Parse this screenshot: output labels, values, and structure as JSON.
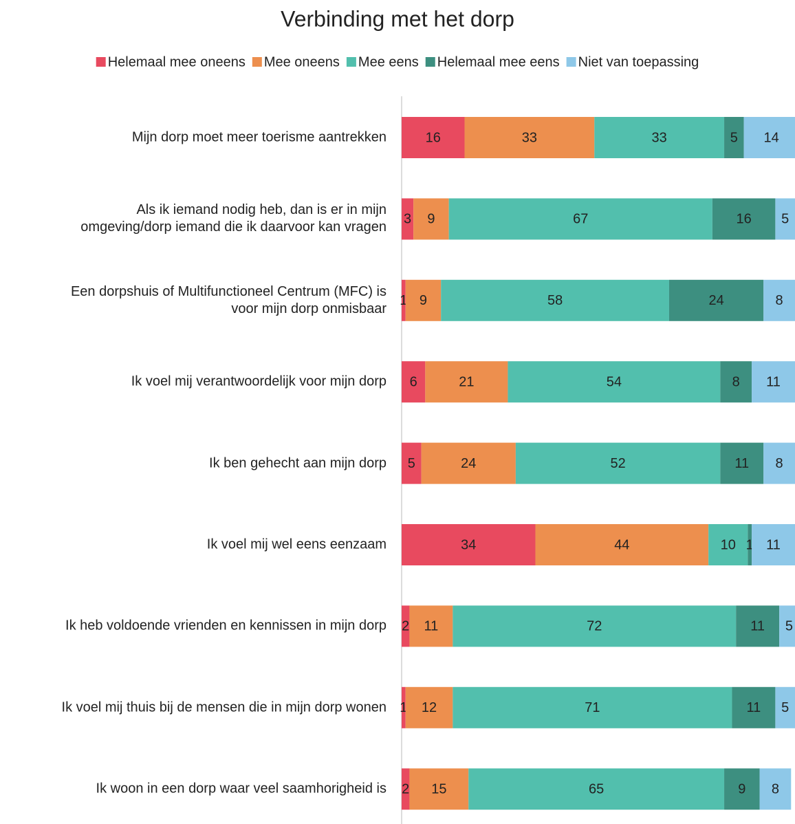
{
  "chart_data": {
    "type": "stacked-bar-horizontal",
    "title": "Verbinding met het dorp",
    "categories": [
      "Mijn dorp moet meer toerisme aantrekken",
      "Als ik iemand nodig heb, dan is er in mijn\nomgeving/dorp iemand die ik daarvoor kan vragen",
      "Een dorpshuis of Multifunctioneel Centrum (MFC) is\nvoor mijn dorp onmisbaar",
      "Ik voel mij verantwoordelijk voor mijn dorp",
      "Ik ben gehecht aan mijn dorp",
      "Ik voel mij wel eens eenzaam",
      "Ik heb voldoende vrienden en kennissen in mijn dorp",
      "Ik voel mij thuis bij de mensen die in mijn dorp wonen",
      "Ik woon in een dorp waar veel saamhorigheid is"
    ],
    "series": [
      {
        "name": "Helemaal mee oneens",
        "color": "#e84a5f",
        "values": [
          16,
          3,
          1,
          6,
          5,
          34,
          2,
          1,
          2
        ]
      },
      {
        "name": "Mee oneens",
        "color": "#ed8f4e",
        "values": [
          33,
          9,
          9,
          21,
          24,
          44,
          11,
          12,
          15
        ]
      },
      {
        "name": "Mee eens",
        "color": "#52bfad",
        "values": [
          33,
          67,
          58,
          54,
          52,
          10,
          72,
          71,
          65
        ]
      },
      {
        "name": "Helemaal mee eens",
        "color": "#3d8f80",
        "values": [
          5,
          16,
          24,
          8,
          11,
          1,
          11,
          11,
          9
        ]
      },
      {
        "name": "Niet van toepassing",
        "color": "#8ec8e8",
        "values": [
          14,
          5,
          8,
          11,
          8,
          11,
          5,
          5,
          8
        ]
      }
    ],
    "xlim": [
      0,
      100
    ],
    "legend": "top"
  }
}
